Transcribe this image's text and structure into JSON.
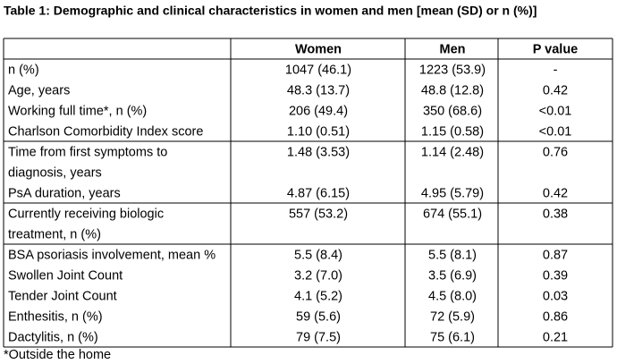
{
  "title": "Table 1:  Demographic and clinical characteristics in women and men [mean (SD) or n (%)]",
  "table": {
    "header": [
      "",
      "Women",
      "Men",
      "P value"
    ],
    "groups": [
      [
        [
          "n (%)",
          "1047 (46.1)",
          "1223 (53.9)",
          "-"
        ],
        [
          "Age, years",
          "48.3 (13.7)",
          "48.8 (12.8)",
          "0.42"
        ],
        [
          "Working full time*, n (%)",
          "206 (49.4)",
          "350 (68.6)",
          "<0.01"
        ],
        [
          "Charlson Comorbidity Index score",
          "1.10 (0.51)",
          "1.15 (0.58)",
          "<0.01"
        ]
      ],
      [
        [
          [
            "Time from first symptoms to",
            "diagnosis, years"
          ],
          "1.48 (3.53)",
          "1.14 (2.48)",
          "0.76"
        ],
        [
          "PsA duration, years",
          "4.87 (6.15)",
          "4.95 (5.79)",
          "0.42"
        ]
      ],
      [
        [
          [
            "Currently receiving biologic",
            "treatment, n (%)"
          ],
          "557 (53.2)",
          "674 (55.1)",
          "0.38"
        ]
      ],
      [
        [
          "BSA psoriasis involvement, mean %",
          "5.5 (8.4)",
          "5.5 (8.1)",
          "0.87"
        ],
        [
          "Swollen Joint Count",
          "3.2 (7.0)",
          "3.5 (6.9)",
          "0.39"
        ],
        [
          "Tender Joint Count",
          "4.1 (5.2)",
          "4.5 (8.0)",
          "0.03"
        ],
        [
          "Enthesitis, n (%)",
          "59 (5.6)",
          "72 (5.9)",
          "0.86"
        ],
        [
          "Dactylitis, n (%)",
          "79 (7.5)",
          "75 (6.1)",
          "0.21"
        ]
      ]
    ]
  },
  "footnote": "*Outside the home"
}
